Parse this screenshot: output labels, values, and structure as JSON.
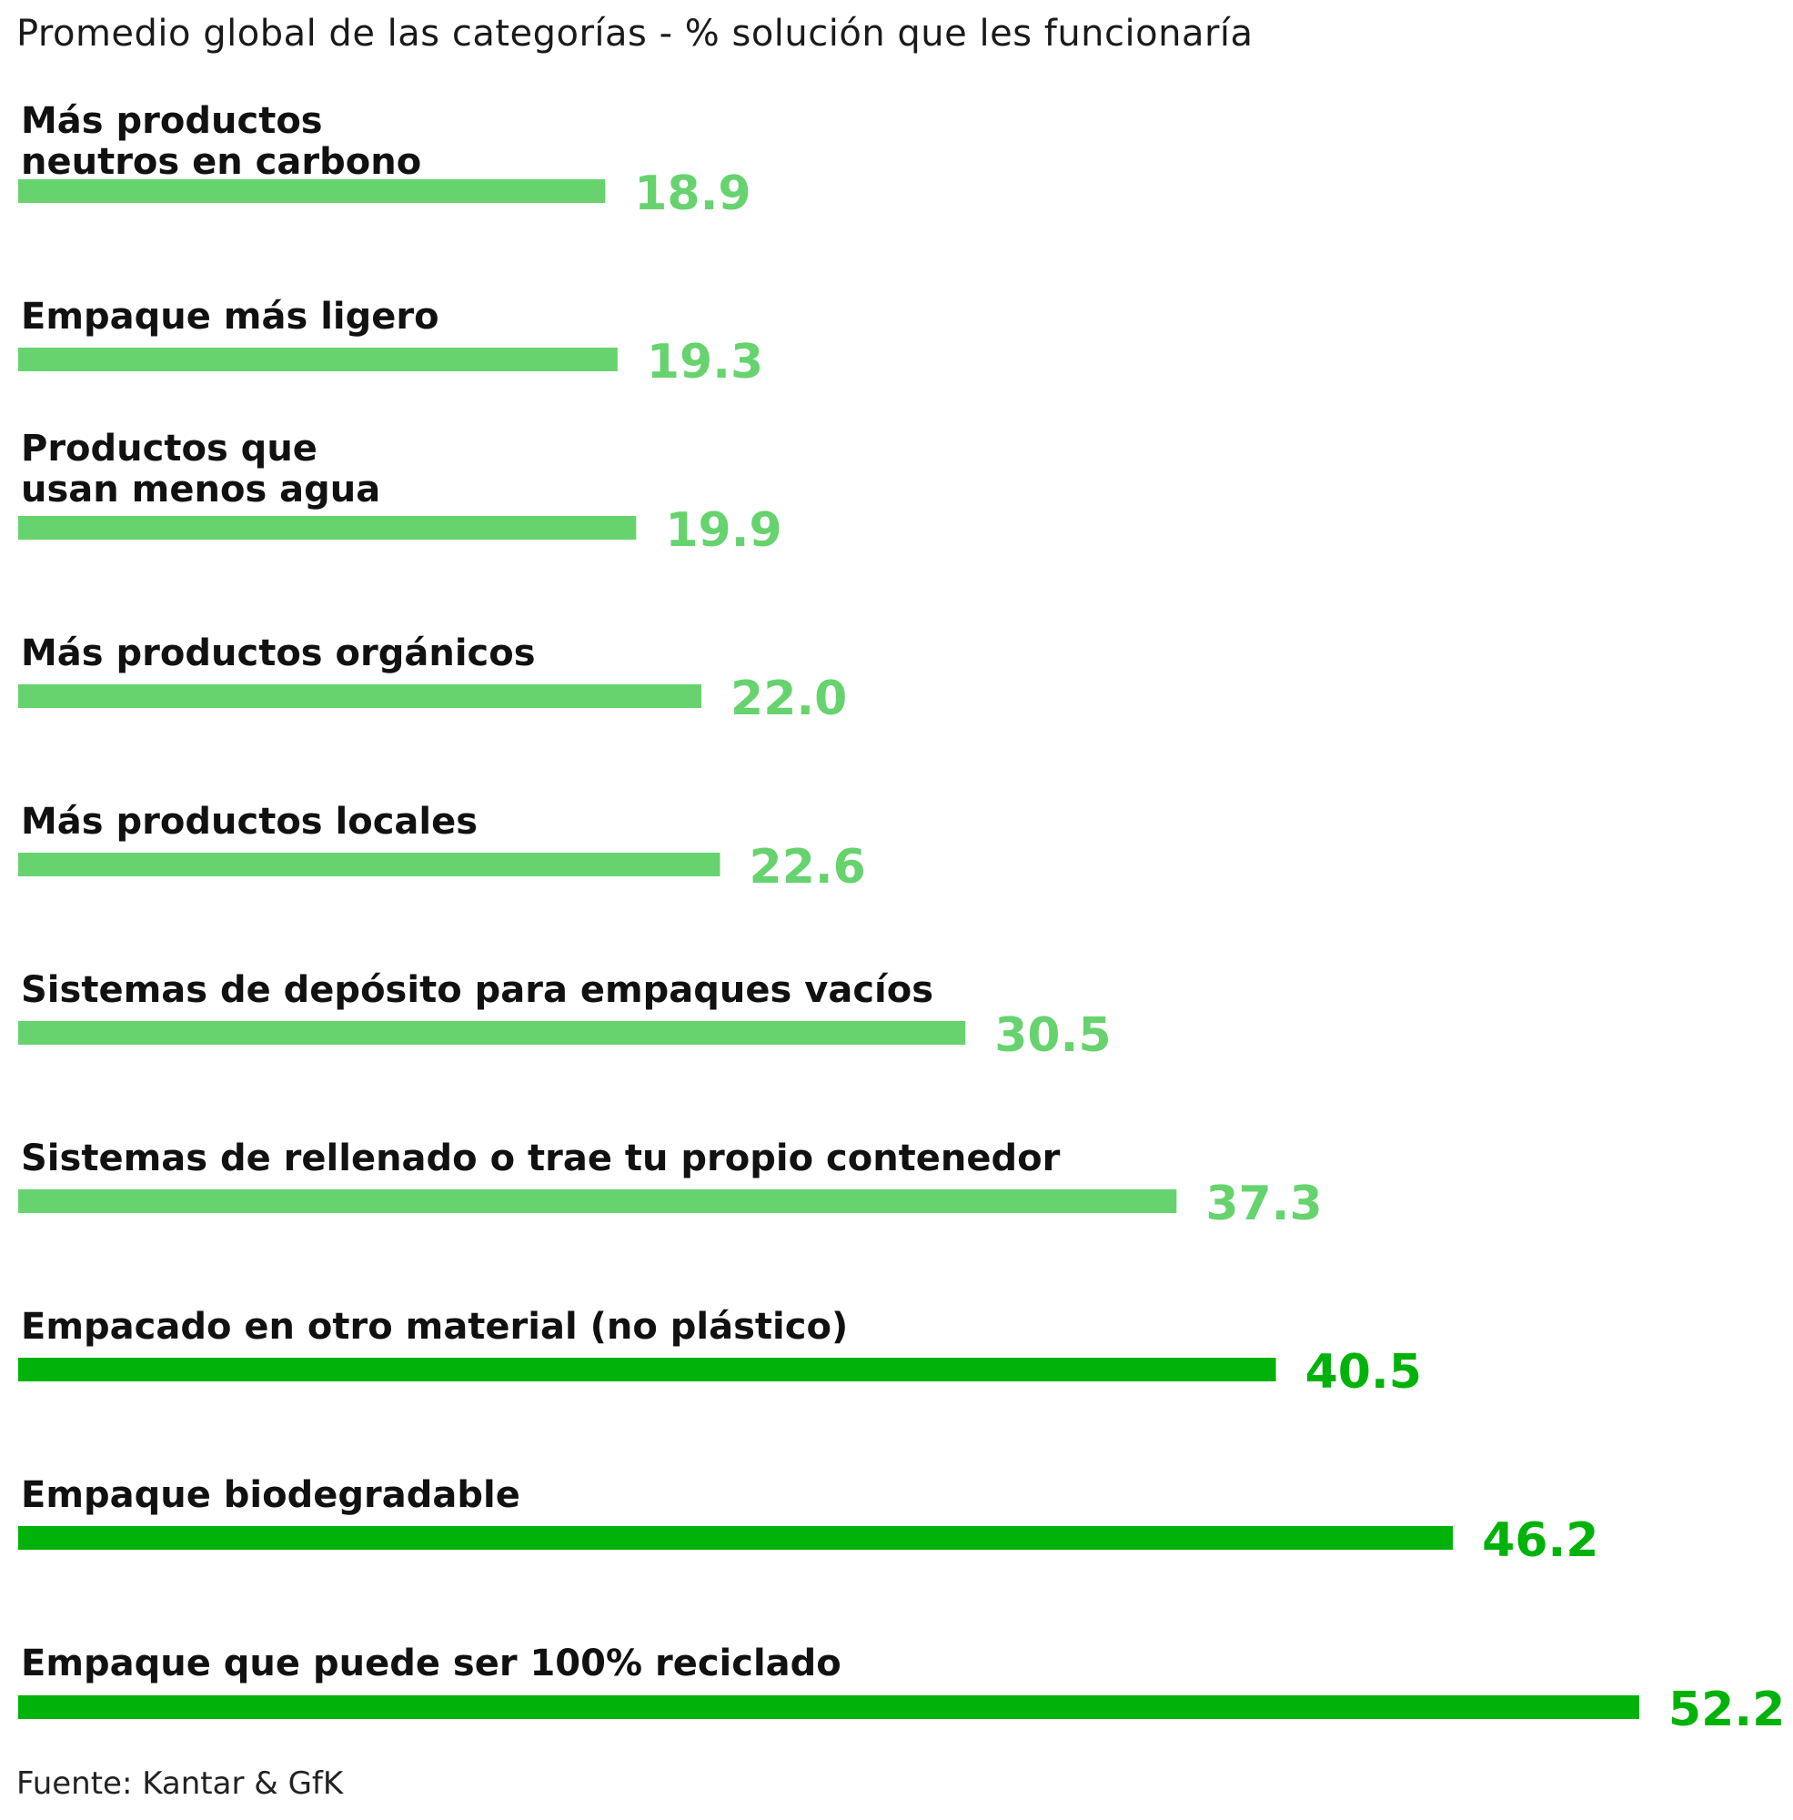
{
  "title": "Promedio global de las categorías - % solución que les funcionaría",
  "source": "Fuente: Kantar & GfK",
  "colors": {
    "light_green": "#66D36E",
    "dark_green": "#00B20A"
  },
  "chart_data": {
    "type": "bar",
    "orientation": "horizontal",
    "title": "Promedio global de las categorías - % solución que les funcionaría",
    "categories": [
      [
        "Más productos",
        "neutros en carbono"
      ],
      [
        "Empaque más ligero"
      ],
      [
        "Productos que",
        "usan menos agua"
      ],
      [
        "Más productos orgánicos"
      ],
      [
        "Más productos locales"
      ],
      [
        "Sistemas de depósito para empaques vacíos"
      ],
      [
        "Sistemas de rellenado o trae tu propio contenedor"
      ],
      [
        "Empacado en otro material (no plástico)"
      ],
      [
        "Empaque biodegradable"
      ],
      [
        "Empaque que puede ser 100% reciclado"
      ]
    ],
    "values": [
      18.9,
      19.3,
      19.9,
      22.0,
      22.6,
      30.5,
      37.3,
      40.5,
      46.2,
      52.2
    ],
    "value_labels": [
      "18.9",
      "19.3",
      "19.9",
      "22.0",
      "22.6",
      "30.5",
      "37.3",
      "40.5",
      "46.2",
      "52.2"
    ],
    "highlight": [
      false,
      false,
      false,
      false,
      false,
      false,
      false,
      true,
      true,
      true
    ],
    "xlim": [
      0,
      52.2
    ],
    "grid": false,
    "legend": "none"
  }
}
